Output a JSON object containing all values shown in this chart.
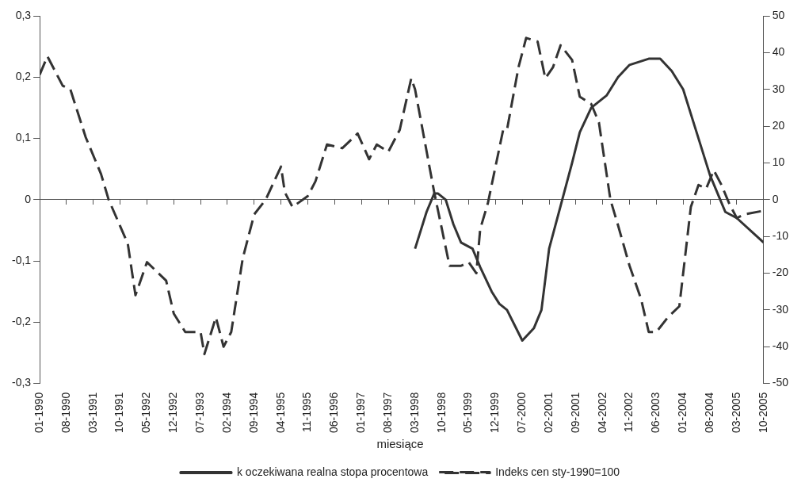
{
  "chart_data": {
    "type": "line",
    "xlabel": "miesiące",
    "legend": "bottom",
    "xlim": [
      "1990-01",
      "2005-10"
    ],
    "xticks": [
      {
        "value": "1990-01",
        "label": "01-1990"
      },
      {
        "value": "1990-08",
        "label": "08-1990"
      },
      {
        "value": "1991-03",
        "label": "03-1991"
      },
      {
        "value": "1991-10",
        "label": "10-1991"
      },
      {
        "value": "1992-05",
        "label": "05-1992"
      },
      {
        "value": "1992-12",
        "label": "12-1992"
      },
      {
        "value": "1993-07",
        "label": "07-1993"
      },
      {
        "value": "1994-02",
        "label": "02-1994"
      },
      {
        "value": "1994-09",
        "label": "09-1994"
      },
      {
        "value": "1995-04",
        "label": "04-1995"
      },
      {
        "value": "1995-11",
        "label": "11-1995"
      },
      {
        "value": "1996-06",
        "label": "06-1996"
      },
      {
        "value": "1997-01",
        "label": "01-1997"
      },
      {
        "value": "1997-08",
        "label": "08-1997"
      },
      {
        "value": "1998-03",
        "label": "03-1998"
      },
      {
        "value": "1998-10",
        "label": "10-1998"
      },
      {
        "value": "1999-05",
        "label": "05-1999"
      },
      {
        "value": "1999-12",
        "label": "12-1999"
      },
      {
        "value": "2000-07",
        "label": "07-2000"
      },
      {
        "value": "2001-02",
        "label": "02-2001"
      },
      {
        "value": "2001-09",
        "label": "09-2001"
      },
      {
        "value": "2002-04",
        "label": "04-2002"
      },
      {
        "value": "2002-11",
        "label": "11-2002"
      },
      {
        "value": "2003-06",
        "label": "06-2003"
      },
      {
        "value": "2004-01",
        "label": "01-2004"
      },
      {
        "value": "2004-08",
        "label": "08-2004"
      },
      {
        "value": "2005-03",
        "label": "03-2005"
      },
      {
        "value": "2005-10",
        "label": "10-2005"
      }
    ],
    "ylim": [
      -0.3,
      0.3
    ],
    "yticks": [
      {
        "value": -0.3,
        "label": "-0,3"
      },
      {
        "value": -0.2,
        "label": "-0,2"
      },
      {
        "value": -0.1,
        "label": "-0,1"
      },
      0,
      {
        "value": 0.1,
        "label": "0,1"
      },
      {
        "value": 0.2,
        "label": "0,2"
      },
      {
        "value": 0.3,
        "label": "0,3"
      }
    ],
    "y2lim": [
      -50,
      50
    ],
    "y2ticks": [
      -50,
      -40,
      -30,
      -20,
      -10,
      0,
      10,
      20,
      30,
      40,
      50
    ],
    "series": [
      {
        "name": "k oczekiwana realna stopa procentowa",
        "color": "#333333",
        "axis": "y",
        "line_style": "solid",
        "x": [
          "1998-03",
          "1998-06",
          "1998-08",
          "1998-09",
          "1998-11",
          "1999-01",
          "1999-03",
          "1999-06",
          "1999-08",
          "1999-11",
          "2000-01",
          "2000-03",
          "2000-07",
          "2000-10",
          "2000-12",
          "2001-02",
          "2001-05",
          "2001-08",
          "2001-10",
          "2002-01",
          "2002-05",
          "2002-08",
          "2002-11",
          "2003-04",
          "2003-07",
          "2003-10",
          "2004-01",
          "2004-04",
          "2004-08",
          "2004-12",
          "2005-03",
          "2005-10"
        ],
        "values": [
          -0.08,
          -0.02,
          0.01,
          0.01,
          0.0,
          -0.04,
          -0.07,
          -0.08,
          -0.11,
          -0.15,
          -0.17,
          -0.18,
          -0.23,
          -0.21,
          -0.18,
          -0.08,
          -0.01,
          0.06,
          0.11,
          0.15,
          0.17,
          0.2,
          0.22,
          0.23,
          0.23,
          0.21,
          0.18,
          0.12,
          0.04,
          -0.02,
          -0.03,
          -0.07
        ]
      },
      {
        "name": "Indeks cen sty-1990=100",
        "color": "#333333",
        "axis": "y2",
        "line_style": "dashed",
        "x": [
          "1990-01",
          "1990-03",
          "1990-07",
          "1990-09",
          "1991-01",
          "1991-05",
          "1991-07",
          "1991-12",
          "1992-02",
          "1992-05",
          "1992-10",
          "1992-12",
          "1993-03",
          "1993-07",
          "1993-08",
          "1993-11",
          "1994-01",
          "1994-03",
          "1994-06",
          "1994-09",
          "1994-12",
          "1995-04",
          "1995-05",
          "1995-07",
          "1995-11",
          "1996-01",
          "1996-04",
          "1996-08",
          "1996-12",
          "1997-03",
          "1997-05",
          "1997-08",
          "1997-11",
          "1998-02",
          "1998-03",
          "1998-08",
          "1998-12",
          "1999-03",
          "1999-05",
          "1999-07",
          "1999-08",
          "1999-10",
          "2000-02",
          "2000-03",
          "2000-06",
          "2000-08",
          "2000-11",
          "2001-01",
          "2001-03",
          "2001-05",
          "2001-08",
          "2001-10",
          "2002-01",
          "2002-03",
          "2002-05",
          "2002-06",
          "2002-08",
          "2002-11",
          "2003-02",
          "2003-04",
          "2003-06",
          "2003-09",
          "2003-12",
          "2004-01",
          "2004-03",
          "2004-05",
          "2004-07",
          "2004-09",
          "2004-11",
          "2005-01",
          "2005-03",
          "2005-05",
          "2005-10"
        ],
        "values": [
          34,
          39,
          31,
          30,
          17,
          7,
          0,
          -12,
          -26,
          -17,
          -22,
          -31,
          -36,
          -36,
          -42,
          -32,
          -40,
          -36,
          -16,
          -4,
          0,
          9,
          2,
          -2,
          1,
          5,
          15,
          14,
          18,
          11,
          15,
          13,
          19,
          33,
          30,
          2,
          -18,
          -18,
          -17,
          -20,
          -8,
          -1,
          19,
          19,
          36,
          44,
          43,
          33,
          36,
          42,
          38,
          28,
          26,
          21,
          7,
          0,
          -7,
          -18,
          -27,
          -36,
          -36,
          -32,
          -29,
          -20,
          -2,
          4,
          3,
          8,
          4,
          -1,
          -5,
          -4,
          -3
        ]
      }
    ]
  }
}
